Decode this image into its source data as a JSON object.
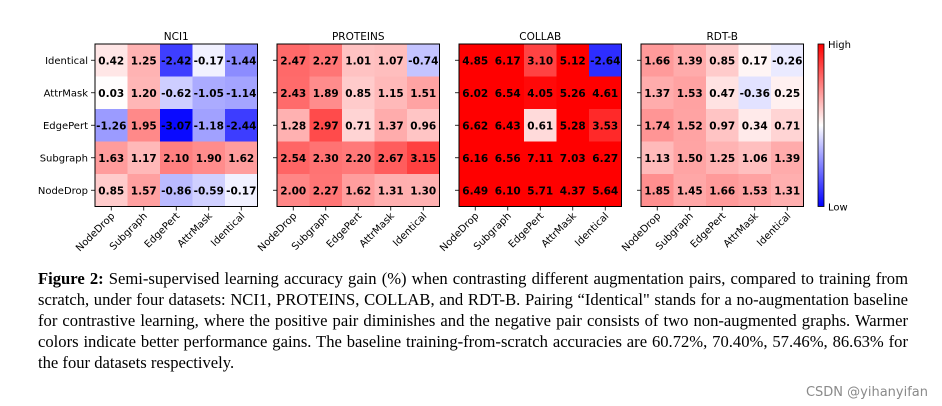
{
  "chart_data": {
    "type": "heatmap",
    "row_labels": [
      "Identical",
      "AttrMask",
      "EdgePert",
      "Subgraph",
      "NodeDrop"
    ],
    "col_labels": [
      "NodeDrop",
      "Subgraph",
      "EdgePert",
      "AttrMask",
      "Identical"
    ],
    "colorbar": {
      "high_label": "High",
      "low_label": "Low"
    },
    "panels": [
      {
        "title": "NCI1",
        "values": [
          [
            "0.42",
            "1.25",
            "-2.42",
            "-0.17",
            "-1.44"
          ],
          [
            "0.03",
            "1.20",
            "-0.62",
            "-1.05",
            "-1.14"
          ],
          [
            "-1.26",
            "1.95",
            "-3.07",
            "-1.18",
            "-2.44"
          ],
          [
            "1.63",
            "1.17",
            "2.10",
            "1.90",
            "1.62"
          ],
          [
            "0.85",
            "1.57",
            "-0.86",
            "-0.59",
            "-0.17"
          ]
        ]
      },
      {
        "title": "PROTEINS",
        "values": [
          [
            "2.47",
            "2.27",
            "1.01",
            "1.07",
            "-0.74"
          ],
          [
            "2.43",
            "1.89",
            "0.85",
            "1.15",
            "1.51"
          ],
          [
            "1.28",
            "2.97",
            "0.71",
            "1.37",
            "0.96"
          ],
          [
            "2.54",
            "2.30",
            "2.20",
            "2.67",
            "3.15"
          ],
          [
            "2.00",
            "2.27",
            "1.62",
            "1.31",
            "1.30"
          ]
        ]
      },
      {
        "title": "COLLAB",
        "values": [
          [
            "4.85",
            "6.17",
            "3.10",
            "5.12",
            "-2.64"
          ],
          [
            "6.02",
            "6.54",
            "4.05",
            "5.26",
            "4.61"
          ],
          [
            "6.62",
            "6.43",
            "0.61",
            "5.28",
            "3.53"
          ],
          [
            "6.16",
            "6.56",
            "7.11",
            "7.03",
            "6.27"
          ],
          [
            "6.49",
            "6.10",
            "5.71",
            "4.37",
            "5.64"
          ]
        ]
      },
      {
        "title": "RDT-B",
        "values": [
          [
            "1.66",
            "1.39",
            "0.85",
            "0.17",
            "-0.26"
          ],
          [
            "1.37",
            "1.53",
            "0.47",
            "-0.36",
            "0.25"
          ],
          [
            "1.74",
            "1.52",
            "0.97",
            "0.34",
            "0.71"
          ],
          [
            "1.13",
            "1.50",
            "1.25",
            "1.06",
            "1.39"
          ],
          [
            "1.85",
            "1.45",
            "1.66",
            "1.53",
            "1.31"
          ]
        ]
      }
    ]
  },
  "caption": {
    "label": "Figure 2:",
    "text": "Semi-supervised learning accuracy gain (%) when contrasting different augmentation pairs, compared to training from scratch, under four datasets: NCI1, PROTEINS, COLLAB, and RDT-B. Pairing “Identical\" stands for a no-augmentation baseline for contrastive learning, where the positive pair diminishes and the negative pair consists of two non-augmented graphs. Warmer colors indicate better performance gains. The baseline training-from-scratch accuracies are 60.72%, 70.40%, 57.46%, 86.63% for the four datasets respectively."
  },
  "watermark": "CSDN @yihanyifan"
}
